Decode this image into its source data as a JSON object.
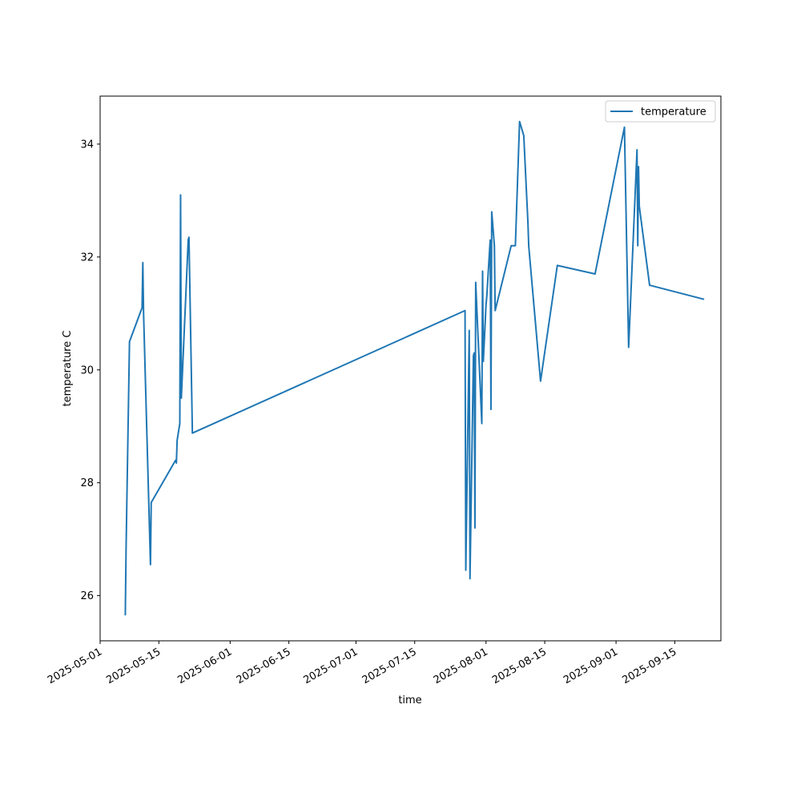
{
  "chart_data": {
    "type": "line",
    "title": "",
    "xlabel": "time",
    "ylabel": "temperature C",
    "x_tick_labels": [
      "2025-05-01",
      "2025-05-15",
      "2025-06-01",
      "2025-06-15",
      "2025-07-01",
      "2025-07-15",
      "2025-08-01",
      "2025-08-15",
      "2025-09-01",
      "2025-09-15"
    ],
    "y_ticks": [
      26,
      28,
      30,
      32,
      34
    ],
    "xlim": [
      "2025-05-01",
      "2025-09-26"
    ],
    "ylim": [
      25.2,
      34.85
    ],
    "grid": false,
    "legend": {
      "position": "upper right",
      "entries": [
        "temperature"
      ]
    },
    "series": [
      {
        "name": "temperature",
        "color": "#1f77b4",
        "points": [
          [
            "2025-05-07",
            25.65
          ],
          [
            "2025-05-07",
            26.8
          ],
          [
            "2025-05-08",
            30.5
          ],
          [
            "2025-05-11",
            31.1
          ],
          [
            "2025-05-11",
            31.9
          ],
          [
            "2025-05-11",
            31.0
          ],
          [
            "2025-05-13",
            26.55
          ],
          [
            "2025-05-13",
            27.65
          ],
          [
            "2025-05-19",
            28.4
          ],
          [
            "2025-05-19",
            28.35
          ],
          [
            "2025-05-19",
            28.75
          ],
          [
            "2025-05-20",
            29.05
          ],
          [
            "2025-05-20",
            33.1
          ],
          [
            "2025-05-20",
            29.5
          ],
          [
            "2025-05-22",
            32.3
          ],
          [
            "2025-05-22",
            32.35
          ],
          [
            "2025-05-23",
            28.88
          ],
          [
            "2025-07-27",
            31.05
          ],
          [
            "2025-07-27",
            26.45
          ],
          [
            "2025-07-28",
            30.7
          ],
          [
            "2025-07-28",
            26.3
          ],
          [
            "2025-07-29",
            30.25
          ],
          [
            "2025-07-29",
            30.3
          ],
          [
            "2025-07-29",
            27.2
          ],
          [
            "2025-07-29",
            31.55
          ],
          [
            "2025-07-31",
            29.05
          ],
          [
            "2025-07-31",
            31.75
          ],
          [
            "2025-07-31",
            30.15
          ],
          [
            "2025-08-01",
            31.15
          ],
          [
            "2025-08-01",
            31.3
          ],
          [
            "2025-08-02",
            32.3
          ],
          [
            "2025-08-02",
            29.3
          ],
          [
            "2025-08-02",
            32.8
          ],
          [
            "2025-08-03",
            32.2
          ],
          [
            "2025-08-03",
            31.05
          ],
          [
            "2025-08-07",
            32.2
          ],
          [
            "2025-08-08",
            32.2
          ],
          [
            "2025-08-09",
            34.4
          ],
          [
            "2025-08-10",
            34.15
          ],
          [
            "2025-08-11",
            32.6
          ],
          [
            "2025-08-11",
            32.2
          ],
          [
            "2025-08-14",
            29.8
          ],
          [
            "2025-08-18",
            31.85
          ],
          [
            "2025-08-27",
            31.7
          ],
          [
            "2025-09-03",
            34.3
          ],
          [
            "2025-09-04",
            30.4
          ],
          [
            "2025-09-06",
            33.9
          ],
          [
            "2025-09-06",
            32.2
          ],
          [
            "2025-09-06",
            33.6
          ],
          [
            "2025-09-06",
            32.9
          ],
          [
            "2025-09-09",
            31.5
          ],
          [
            "2025-09-22",
            31.25
          ]
        ]
      }
    ]
  }
}
